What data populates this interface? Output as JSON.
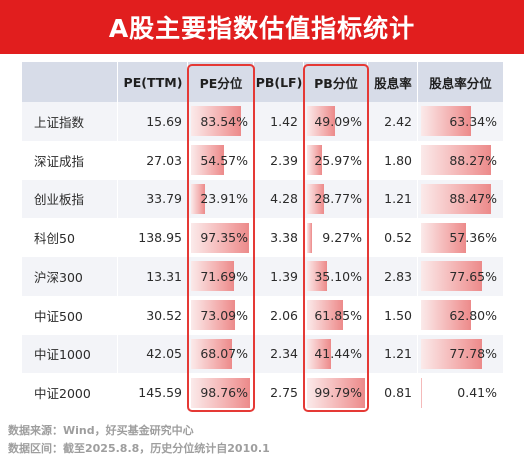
{
  "title": "A股主要指数估值指标统计",
  "chart_data": {
    "type": "table",
    "columns": [
      "",
      "PE(TTM)",
      "PE分位",
      "PB(LF)",
      "PB分位",
      "股息率",
      "股息率分位"
    ],
    "rows": [
      {
        "name": "上证指数",
        "pe": "15.69",
        "pe_pct": "83.54%",
        "pe_pct_value": 83.54,
        "pb": "1.42",
        "pb_pct": "49.09%",
        "pb_pct_value": 49.09,
        "dy": "2.42",
        "dy_pct": "63.34%",
        "dy_pct_value": 63.34
      },
      {
        "name": "深证成指",
        "pe": "27.03",
        "pe_pct": "54.57%",
        "pe_pct_value": 54.57,
        "pb": "2.39",
        "pb_pct": "25.97%",
        "pb_pct_value": 25.97,
        "dy": "1.80",
        "dy_pct": "88.27%",
        "dy_pct_value": 88.27
      },
      {
        "name": "创业板指",
        "pe": "33.79",
        "pe_pct": "23.91%",
        "pe_pct_value": 23.91,
        "pb": "4.28",
        "pb_pct": "28.77%",
        "pb_pct_value": 28.77,
        "dy": "1.21",
        "dy_pct": "88.47%",
        "dy_pct_value": 88.47
      },
      {
        "name": "科创50",
        "pe": "138.95",
        "pe_pct": "97.35%",
        "pe_pct_value": 97.35,
        "pb": "3.38",
        "pb_pct": "9.27%",
        "pb_pct_value": 9.27,
        "dy": "0.52",
        "dy_pct": "57.36%",
        "dy_pct_value": 57.36
      },
      {
        "name": "沪深300",
        "pe": "13.31",
        "pe_pct": "71.69%",
        "pe_pct_value": 71.69,
        "pb": "1.39",
        "pb_pct": "35.10%",
        "pb_pct_value": 35.1,
        "dy": "2.83",
        "dy_pct": "77.65%",
        "dy_pct_value": 77.65
      },
      {
        "name": "中证500",
        "pe": "30.52",
        "pe_pct": "73.09%",
        "pe_pct_value": 73.09,
        "pb": "2.06",
        "pb_pct": "61.85%",
        "pb_pct_value": 61.85,
        "dy": "1.50",
        "dy_pct": "62.80%",
        "dy_pct_value": 62.8
      },
      {
        "name": "中证1000",
        "pe": "42.05",
        "pe_pct": "68.07%",
        "pe_pct_value": 68.07,
        "pb": "2.34",
        "pb_pct": "41.44%",
        "pb_pct_value": 41.44,
        "dy": "1.21",
        "dy_pct": "77.78%",
        "dy_pct_value": 77.78
      },
      {
        "name": "中证2000",
        "pe": "145.59",
        "pe_pct": "98.76%",
        "pe_pct_value": 98.76,
        "pb": "2.75",
        "pb_pct": "99.79%",
        "pb_pct_value": 99.79,
        "dy": "0.81",
        "dy_pct": "0.41%",
        "dy_pct_value": 0.41
      }
    ],
    "highlighted_columns": [
      "PE分位",
      "PB分位"
    ]
  },
  "colors": {
    "title_bg": "#e11e1e",
    "header_bg": "#d7dce8",
    "bar_color": "#ec8a8a",
    "highlight_border": "#e53935"
  },
  "footer": {
    "source": "数据来源：Wind，好买基金研究中心",
    "period": "数据区间：截至2025.8.8，历史分位统计自2010.1"
  }
}
